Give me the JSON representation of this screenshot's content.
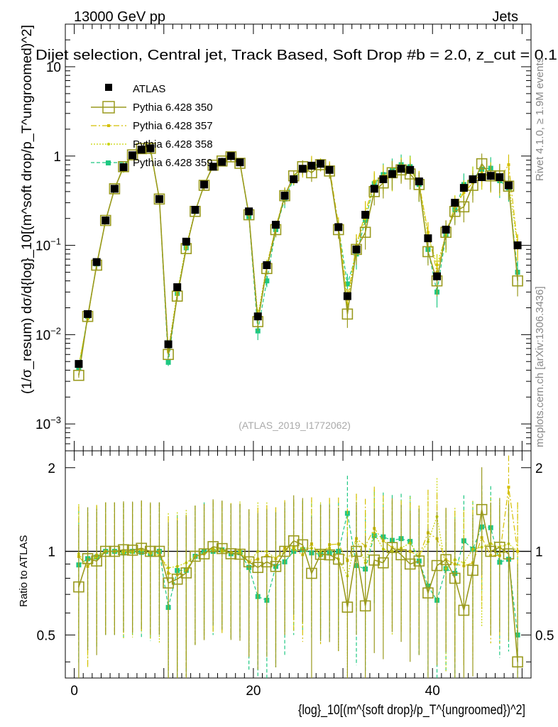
{
  "header": {
    "energy_label": "13000 GeV pp",
    "category_label": "Jets",
    "title": "Dijet selection, Central jet, Track Based, Soft Drop #b = 2.0, z_cut = 0.1",
    "watermark": "(ATLAS_2019_I1772062)",
    "side_label_rivet": "Rivet 4.1.0, ≥ 1.9M events",
    "side_label_mcplots": "mcplots.cern.ch [arXiv:1306.3436]"
  },
  "axes": {
    "ylabel_main": "(1/σ_resum) dσ/d{log}_10[(m^soft drop/p_T^ungroomed)^2]",
    "ylabel_ratio": "Ratio to ATLAS",
    "xlabel": "{log}_10[(m^{soft drop}/p_T^{ungroomed})^2]",
    "x_ticks": [
      "0",
      "20",
      "40"
    ],
    "y_ticks_main": [
      "10^-3",
      "10^-2",
      "10^-1",
      "1",
      "10"
    ],
    "y_ticks_ratio": [
      "0.5",
      "1",
      "2"
    ]
  },
  "legend": [
    {
      "label": "ATLAS",
      "marker": "filled-square"
    },
    {
      "label": "Pythia 6.428 350",
      "marker": "open-square"
    },
    {
      "label": "Pythia 6.428 357",
      "marker": "dash-dot-star"
    },
    {
      "label": "Pythia 6.428 358",
      "marker": "dotted-dot"
    },
    {
      "label": "Pythia 6.428 359",
      "marker": "dashed-square"
    }
  ],
  "colors": {
    "atlas": "#000000",
    "py350": "#9a9a1e",
    "py357": "#d4bf00",
    "py358": "#c8d400",
    "py359": "#1ec882",
    "line": "#000000"
  },
  "chart_data": {
    "type": "scatter",
    "x": [
      0.5,
      1.5,
      2.5,
      3.5,
      4.5,
      5.5,
      6.5,
      7.5,
      8.5,
      9.5,
      10.5,
      11.5,
      12.5,
      13.5,
      14.5,
      15.5,
      16.5,
      17.5,
      18.5,
      19.5,
      20.5,
      21.5,
      22.5,
      23.5,
      24.5,
      25.5,
      26.5,
      27.5,
      28.5,
      29.5,
      30.5,
      31.5,
      32.5,
      33.5,
      34.5,
      35.5,
      36.5,
      37.5,
      38.5,
      39.5,
      40.5,
      41.5,
      42.5,
      43.5,
      44.5,
      45.5,
      46.5,
      47.5,
      48.5,
      49.5
    ],
    "xlim": [
      -1,
      51
    ],
    "ylim_main": [
      0.0005,
      30
    ],
    "ylog_main": true,
    "ylim_ratio": [
      0.35,
      2.3
    ],
    "ylog_ratio": true,
    "series": [
      {
        "name": "ATLAS",
        "values": [
          0.0047,
          0.017,
          0.065,
          0.19,
          0.43,
          0.75,
          1.02,
          1.18,
          1.22,
          0.33,
          0.0078,
          0.034,
          0.11,
          0.25,
          0.48,
          0.76,
          0.86,
          1.0,
          0.85,
          0.24,
          0.016,
          0.06,
          0.17,
          0.36,
          0.55,
          0.72,
          0.78,
          0.82,
          0.7,
          0.16,
          0.027,
          0.09,
          0.22,
          0.43,
          0.55,
          0.63,
          0.72,
          0.7,
          0.52,
          0.12,
          0.045,
          0.15,
          0.3,
          0.44,
          0.55,
          0.58,
          0.6,
          0.58,
          0.47,
          0.1
        ]
      },
      {
        "name": "Pythia 6.428 350",
        "values": [
          0.0035,
          0.016,
          0.06,
          0.19,
          0.43,
          0.76,
          1.03,
          1.21,
          1.22,
          0.33,
          0.006,
          0.027,
          0.092,
          0.24,
          0.47,
          0.79,
          0.88,
          0.98,
          0.83,
          0.22,
          0.014,
          0.055,
          0.15,
          0.36,
          0.6,
          0.76,
          0.65,
          0.8,
          0.68,
          0.15,
          0.017,
          0.09,
          0.14,
          0.4,
          0.5,
          0.65,
          0.7,
          0.63,
          0.48,
          0.085,
          0.04,
          0.14,
          0.24,
          0.27,
          0.47,
          0.82,
          0.6,
          0.6,
          0.46,
          0.04
        ]
      },
      {
        "name": "Pythia 6.428 357",
        "values": [
          0.0045,
          0.015,
          0.063,
          0.19,
          0.43,
          0.75,
          1.02,
          1.2,
          1.2,
          0.33,
          0.0065,
          0.028,
          0.094,
          0.24,
          0.47,
          0.77,
          0.86,
          0.99,
          0.84,
          0.22,
          0.015,
          0.058,
          0.16,
          0.37,
          0.56,
          0.7,
          0.83,
          0.79,
          0.74,
          0.17,
          0.025,
          0.1,
          0.23,
          0.52,
          0.6,
          0.65,
          0.73,
          0.7,
          0.5,
          0.14,
          0.05,
          0.14,
          0.27,
          0.39,
          0.5,
          0.65,
          0.58,
          0.56,
          0.8,
          0.1
        ]
      },
      {
        "name": "Pythia 6.428 358",
        "values": [
          0.0046,
          0.015,
          0.062,
          0.19,
          0.43,
          0.74,
          1.01,
          1.19,
          1.2,
          0.32,
          0.0068,
          0.03,
          0.1,
          0.24,
          0.47,
          0.78,
          0.87,
          0.99,
          0.86,
          0.22,
          0.016,
          0.06,
          0.16,
          0.36,
          0.57,
          0.74,
          0.8,
          0.82,
          0.72,
          0.15,
          0.022,
          0.1,
          0.2,
          0.5,
          0.56,
          0.63,
          0.74,
          0.75,
          0.5,
          0.13,
          0.06,
          0.13,
          0.28,
          0.4,
          0.56,
          0.6,
          0.64,
          0.6,
          0.5,
          0.1
        ]
      },
      {
        "name": "Pythia 6.428 359",
        "values": [
          0.0042,
          0.016,
          0.062,
          0.19,
          0.43,
          0.74,
          1.02,
          1.17,
          1.19,
          0.33,
          0.0049,
          0.029,
          0.094,
          0.24,
          0.48,
          0.76,
          0.87,
          0.98,
          0.84,
          0.21,
          0.011,
          0.04,
          0.15,
          0.33,
          0.55,
          0.73,
          0.77,
          0.8,
          0.69,
          0.16,
          0.037,
          0.08,
          0.19,
          0.49,
          0.62,
          0.69,
          0.8,
          0.76,
          0.48,
          0.09,
          0.03,
          0.13,
          0.25,
          0.48,
          0.56,
          0.71,
          0.73,
          0.53,
          0.44,
          0.05
        ]
      }
    ]
  }
}
